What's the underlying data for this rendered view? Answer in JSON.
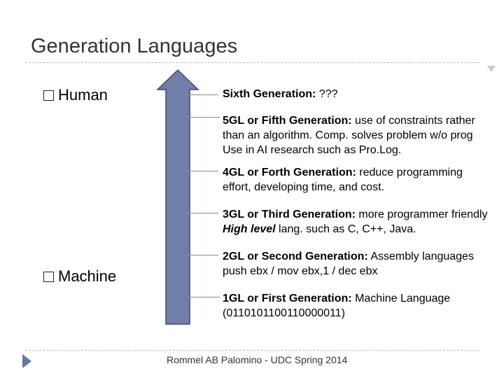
{
  "title": "Generation Languages",
  "bullets": {
    "top": "Human",
    "bottom": "Machine"
  },
  "items": [
    {
      "label": "Sixth Generation:",
      "text": " ???"
    },
    {
      "label": "5GL or Fifth Generation:",
      "text": " use of constraints rather",
      "line2": "than an algorithm. Comp. solves problem w/o prog",
      "line3": "Use in AI research such as Pro.Log."
    },
    {
      "label": "4GL or Forth Generation:",
      "text": " reduce programming",
      "line2": "effort, developing time, and cost."
    },
    {
      "label": "3GL or Third Generation:",
      "text": " more programmer friendly",
      "line2_em": "High level",
      "line2": " lang. such as C, C++, Java."
    },
    {
      "label": "2GL or Second Generation:",
      "text": " Assembly languages",
      "line2": "push ebx / mov ebx,1 / dec ebx"
    },
    {
      "label": "1GL or First Generation:",
      "text": " Machine Language",
      "line2": "(0110101100110000011)"
    }
  ],
  "footer": "Rommel AB Palomino - UDC Spring 2014",
  "colors": {
    "arrow_fill": "#6f7faa",
    "arrow_stroke": "#3a4a72",
    "nav": "#5d7aa6"
  }
}
